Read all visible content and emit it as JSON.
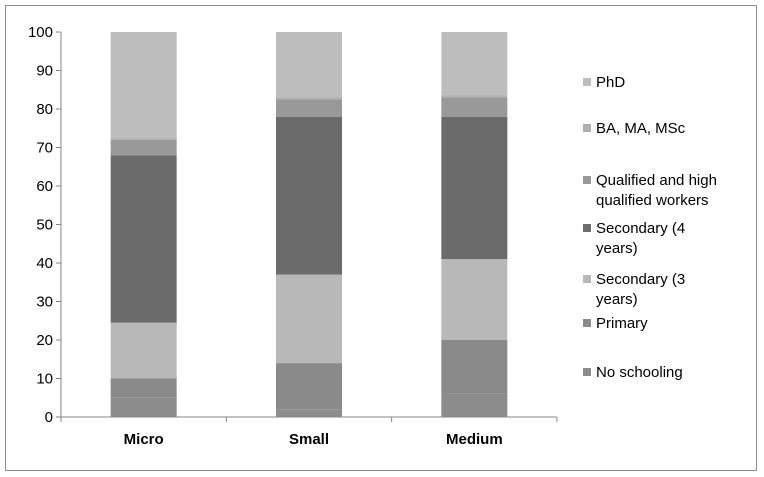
{
  "chart_data": {
    "type": "bar",
    "stacked": true,
    "categories": [
      "Micro",
      "Small",
      "Medium"
    ],
    "series": [
      {
        "name": "No schooling",
        "values": [
          5,
          2,
          6
        ],
        "color": "#8c8c8c"
      },
      {
        "name": "Primary",
        "values": [
          5,
          12,
          14
        ],
        "color": "#8a8a8a"
      },
      {
        "name": "Secondary (3 years)",
        "values": [
          14.5,
          23,
          21
        ],
        "color": "#b8b8b8"
      },
      {
        "name": "Secondary (4 years)",
        "values": [
          43.5,
          41,
          37
        ],
        "color": "#6b6b6b"
      },
      {
        "name": "Qualified and high qualified workers",
        "values": [
          4,
          4.5,
          5
        ],
        "color": "#999999"
      },
      {
        "name": "BA, MA, MSc",
        "values": [
          0.5,
          0.5,
          0.5
        ],
        "color": "#b0b0b0"
      },
      {
        "name": "PhD",
        "values": [
          27.5,
          17,
          16.5
        ],
        "color": "#bdbdbd"
      }
    ],
    "ylim": [
      0,
      100
    ],
    "yticks": [
      0,
      10,
      20,
      30,
      40,
      50,
      60,
      70,
      80,
      90,
      100
    ],
    "legend_position": "right",
    "legend_order": [
      {
        "label": "PhD",
        "series": 6
      },
      {
        "label": "BA, MA, MSc",
        "series": 5
      },
      {
        "label": [
          "Qualified and high",
          "qualified workers"
        ],
        "series": 4
      },
      {
        "label": [
          "Secondary (4",
          "years)"
        ],
        "series": 3
      },
      {
        "label": [
          "Secondary (3",
          "years)"
        ],
        "series": 2
      },
      {
        "label": "Primary",
        "series": 1
      },
      {
        "label": "No schooling",
        "series": 0
      }
    ],
    "grid": false,
    "title": "",
    "xlabel": "",
    "ylabel": ""
  }
}
